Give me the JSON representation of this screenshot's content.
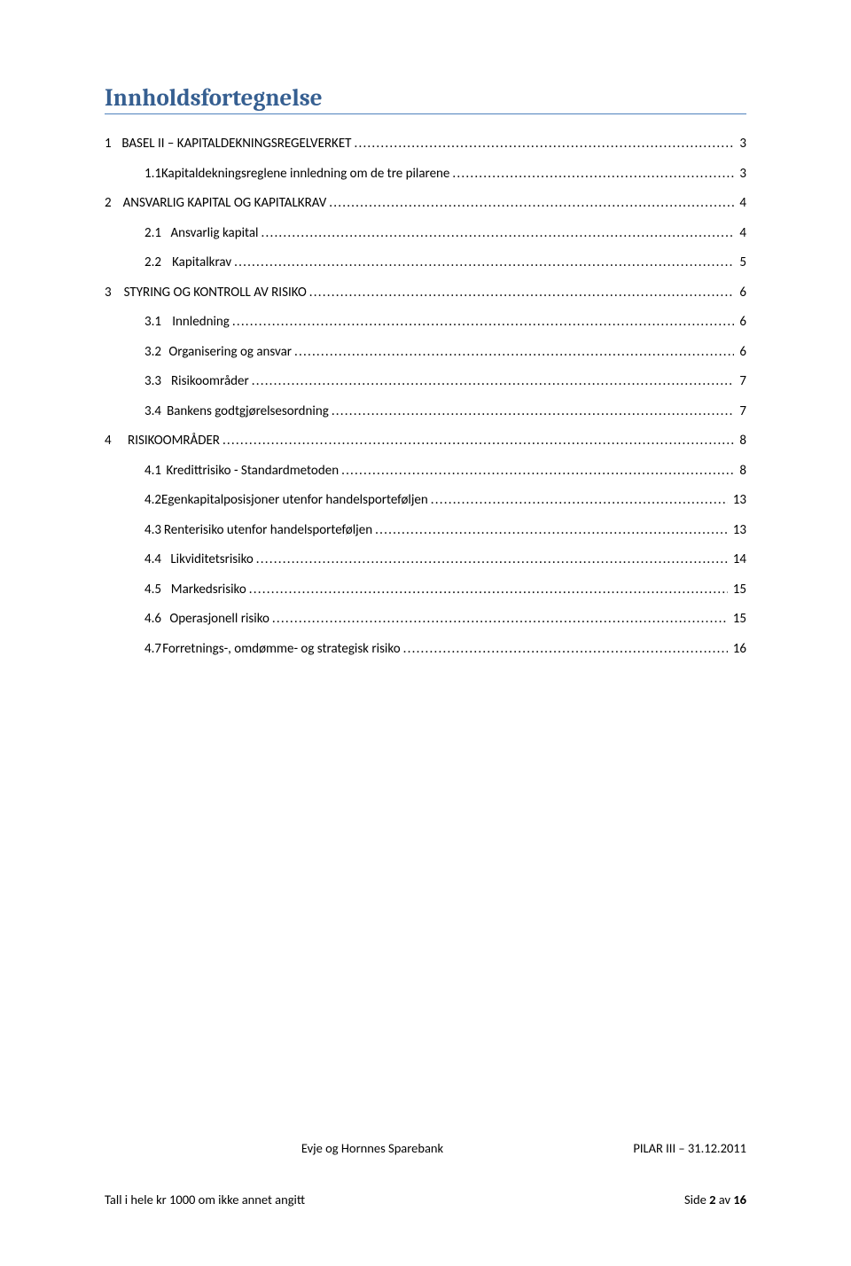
{
  "title": "Innholdsfortegnelse",
  "title_color": "#365f91",
  "title_underline_color": "#4f81bd",
  "toc": [
    {
      "level": 1,
      "num": "1",
      "text": "BASEL II – KAPITALDEKNINGSREGELVERKET",
      "page": "3"
    },
    {
      "level": 2,
      "num": "1.1",
      "text": "Kapitaldekningsreglene innledning om de tre pilarene",
      "page": "3"
    },
    {
      "level": 1,
      "num": "2",
      "text": "ANSVARLIG KAPITAL OG KAPITALKRAV",
      "page": "4"
    },
    {
      "level": 2,
      "num": "2.1",
      "text": "Ansvarlig kapital",
      "page": "4"
    },
    {
      "level": 2,
      "num": "2.2",
      "text": "Kapitalkrav",
      "page": "5"
    },
    {
      "level": 1,
      "num": "3",
      "text": "STYRING OG KONTROLL AV RISIKO",
      "page": "6"
    },
    {
      "level": 2,
      "num": "3.1",
      "text": "Innledning",
      "page": "6"
    },
    {
      "level": 2,
      "num": "3.2",
      "text": "Organisering og ansvar",
      "page": "6"
    },
    {
      "level": 2,
      "num": "3.3",
      "text": "Risikoområder",
      "page": "7"
    },
    {
      "level": 2,
      "num": "3.4",
      "text": "Bankens godtgjørelsesordning",
      "page": "7"
    },
    {
      "level": 1,
      "num": "4",
      "text": "RISIKOOMRÅDER",
      "page": "8"
    },
    {
      "level": 2,
      "num": "4.1",
      "text": "Kredittrisiko - Standardmetoden",
      "page": "8"
    },
    {
      "level": 2,
      "num": "4.2",
      "text": "Egenkapitalposisjoner utenfor handelsporteføljen",
      "page": "13"
    },
    {
      "level": 2,
      "num": "4.3",
      "text": "Renterisiko utenfor handelsporteføljen",
      "page": "13"
    },
    {
      "level": 2,
      "num": "4.4",
      "text": "Likviditetsrisiko",
      "page": "14"
    },
    {
      "level": 2,
      "num": "4.5",
      "text": "Markedsrisiko",
      "page": "15"
    },
    {
      "level": 2,
      "num": "4.6",
      "text": "Operasjonell risiko",
      "page": "15"
    },
    {
      "level": 2,
      "num": "4.7",
      "text": "Forretnings-, omdømme- og strategisk risiko",
      "page": "16"
    }
  ],
  "dots": "........................................................................................................................................................................................................",
  "footer": {
    "center": "Evje og Hornnes Sparebank",
    "right1": "PILAR III – 31.12.2011",
    "left": "Tall i hele kr 1000 om ikke annet angitt",
    "page_prefix": "Side ",
    "page_num": "2",
    "page_sep": " av ",
    "page_total": "16"
  }
}
